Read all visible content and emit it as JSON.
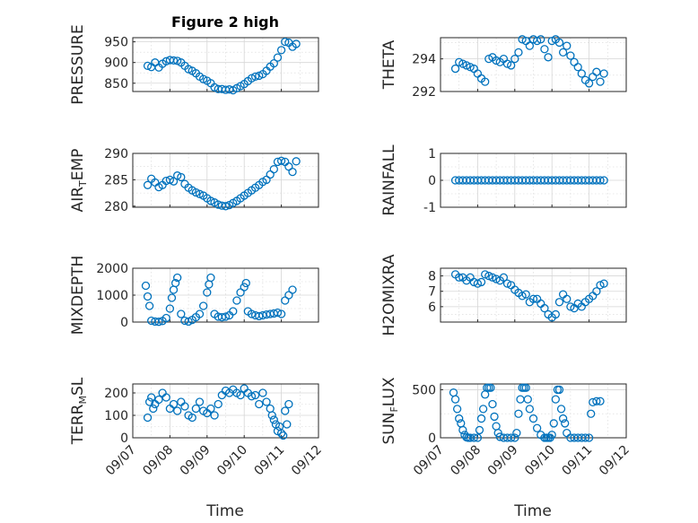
{
  "figure": {
    "title": "Figure 2 high",
    "xlabel": "Time"
  },
  "chart_data": [
    {
      "id": "pressure",
      "type": "scatter",
      "ylabel": "PRESSURE",
      "xlim": [
        0,
        5
      ],
      "ylim": [
        830,
        960
      ],
      "yticks": [
        850,
        900,
        950
      ],
      "ytick_labels": [
        "850",
        "900",
        "950"
      ],
      "x": [
        0.4,
        0.5,
        0.6,
        0.7,
        0.8,
        0.9,
        1.0,
        1.1,
        1.2,
        1.3,
        1.4,
        1.5,
        1.6,
        1.7,
        1.8,
        1.9,
        2.0,
        2.1,
        2.2,
        2.3,
        2.4,
        2.5,
        2.6,
        2.7,
        2.8,
        2.9,
        3.0,
        3.1,
        3.2,
        3.3,
        3.4,
        3.5,
        3.6,
        3.7,
        3.8,
        3.9,
        4.0,
        4.1,
        4.2,
        4.3,
        4.4
      ],
      "y": [
        892,
        889,
        900,
        888,
        897,
        903,
        906,
        905,
        904,
        900,
        892,
        884,
        880,
        874,
        866,
        860,
        856,
        850,
        840,
        836,
        836,
        834,
        835,
        833,
        838,
        843,
        848,
        855,
        862,
        866,
        868,
        872,
        880,
        890,
        898,
        912,
        930,
        950,
        948,
        938,
        945
      ]
    },
    {
      "id": "theta",
      "type": "scatter",
      "ylabel": "THETA",
      "xlim": [
        0,
        5
      ],
      "ylim": [
        292,
        295.3
      ],
      "yticks": [
        292,
        294
      ],
      "ytick_labels": [
        "292",
        "294"
      ],
      "x": [
        0.4,
        0.5,
        0.6,
        0.7,
        0.8,
        0.9,
        1.0,
        1.1,
        1.2,
        1.3,
        1.4,
        1.5,
        1.6,
        1.7,
        1.8,
        1.9,
        2.0,
        2.1,
        2.2,
        2.3,
        2.4,
        2.5,
        2.6,
        2.7,
        2.8,
        2.9,
        3.0,
        3.1,
        3.2,
        3.3,
        3.4,
        3.5,
        3.6,
        3.7,
        3.8,
        3.9,
        4.0,
        4.1,
        4.2,
        4.3,
        4.4
      ],
      "y": [
        293.4,
        293.8,
        293.7,
        293.6,
        293.5,
        293.4,
        293.1,
        292.8,
        292.6,
        294.0,
        294.1,
        293.9,
        293.8,
        294.0,
        293.7,
        293.6,
        294.0,
        294.4,
        295.2,
        295.1,
        294.8,
        295.2,
        295.1,
        295.2,
        294.6,
        294.1,
        295.1,
        295.2,
        295.0,
        294.4,
        294.8,
        294.2,
        293.8,
        293.5,
        293.1,
        292.7,
        292.5,
        292.9,
        293.2,
        292.6,
        293.1
      ]
    },
    {
      "id": "air_temp",
      "type": "scatter",
      "ylabel": "AIR",
      "ylabel_sub": "T",
      "ylabel_rest": "EMP",
      "xlim": [
        0,
        5
      ],
      "ylim": [
        279.8,
        290
      ],
      "yticks": [
        280,
        285,
        290
      ],
      "ytick_labels": [
        "280",
        "285",
        "290"
      ],
      "x": [
        0.4,
        0.5,
        0.6,
        0.7,
        0.8,
        0.9,
        1.0,
        1.1,
        1.2,
        1.3,
        1.4,
        1.5,
        1.6,
        1.7,
        1.8,
        1.9,
        2.0,
        2.1,
        2.2,
        2.3,
        2.4,
        2.5,
        2.6,
        2.7,
        2.8,
        2.9,
        3.0,
        3.1,
        3.2,
        3.3,
        3.4,
        3.5,
        3.6,
        3.7,
        3.8,
        3.9,
        4.0,
        4.1,
        4.2,
        4.3,
        4.4
      ],
      "y": [
        284.0,
        285.2,
        284.5,
        283.6,
        284.0,
        284.8,
        285.0,
        284.7,
        285.8,
        285.5,
        284.2,
        283.5,
        283.0,
        282.6,
        282.3,
        282.0,
        281.5,
        281.0,
        280.7,
        280.3,
        280.1,
        280.0,
        280.2,
        280.6,
        281.0,
        281.5,
        282.0,
        282.5,
        283.0,
        283.5,
        284.0,
        284.6,
        285.0,
        286.0,
        287.0,
        288.4,
        288.6,
        288.4,
        287.5,
        286.5,
        288.5
      ]
    },
    {
      "id": "rainfall",
      "type": "scatter",
      "ylabel": "RAINFALL",
      "xlim": [
        0,
        5
      ],
      "ylim": [
        -1,
        1
      ],
      "yticks": [
        -1,
        0,
        1
      ],
      "ytick_labels": [
        "-1",
        "0",
        "1"
      ],
      "x": [
        0.4,
        0.5,
        0.6,
        0.7,
        0.8,
        0.9,
        1.0,
        1.1,
        1.2,
        1.3,
        1.4,
        1.5,
        1.6,
        1.7,
        1.8,
        1.9,
        2.0,
        2.1,
        2.2,
        2.3,
        2.4,
        2.5,
        2.6,
        2.7,
        2.8,
        2.9,
        3.0,
        3.1,
        3.2,
        3.3,
        3.4,
        3.5,
        3.6,
        3.7,
        3.8,
        3.9,
        4.0,
        4.1,
        4.2,
        4.3,
        4.4
      ],
      "y": [
        0,
        0,
        0,
        0,
        0,
        0,
        0,
        0,
        0,
        0,
        0,
        0,
        0,
        0,
        0,
        0,
        0,
        0,
        0,
        0,
        0,
        0,
        0,
        0,
        0,
        0,
        0,
        0,
        0,
        0,
        0,
        0,
        0,
        0,
        0,
        0,
        0,
        0,
        0,
        0,
        0
      ]
    },
    {
      "id": "mixdepth",
      "type": "scatter",
      "ylabel": "MIXDEPTH",
      "xlim": [
        0,
        5
      ],
      "ylim": [
        0,
        2000
      ],
      "yticks": [
        0,
        1000,
        2000
      ],
      "ytick_labels": [
        "0",
        "1000",
        "2000"
      ],
      "x": [
        0.35,
        0.4,
        0.45,
        0.5,
        0.6,
        0.7,
        0.8,
        0.9,
        1.0,
        1.05,
        1.1,
        1.15,
        1.2,
        1.3,
        1.4,
        1.5,
        1.6,
        1.7,
        1.8,
        1.9,
        2.0,
        2.05,
        2.1,
        2.2,
        2.3,
        2.4,
        2.5,
        2.6,
        2.7,
        2.8,
        2.9,
        3.0,
        3.05,
        3.1,
        3.2,
        3.3,
        3.4,
        3.5,
        3.6,
        3.7,
        3.8,
        3.9,
        4.0,
        4.1,
        4.2,
        4.3
      ],
      "y": [
        1350,
        950,
        600,
        50,
        20,
        10,
        40,
        150,
        500,
        900,
        1200,
        1450,
        1650,
        300,
        50,
        20,
        80,
        180,
        300,
        600,
        1100,
        1400,
        1650,
        300,
        200,
        180,
        200,
        250,
        400,
        800,
        1100,
        1300,
        1450,
        400,
        300,
        250,
        220,
        250,
        280,
        300,
        320,
        350,
        300,
        800,
        1000,
        1200
      ]
    },
    {
      "id": "h2omixra",
      "type": "scatter",
      "ylabel": "H2OMIXRA",
      "xlim": [
        0,
        5
      ],
      "ylim": [
        5,
        8.5
      ],
      "yticks": [
        6,
        7,
        8
      ],
      "ytick_labels": [
        "6",
        "7",
        "8"
      ],
      "x": [
        0.4,
        0.5,
        0.6,
        0.7,
        0.8,
        0.9,
        1.0,
        1.1,
        1.2,
        1.3,
        1.4,
        1.5,
        1.6,
        1.7,
        1.8,
        1.9,
        2.0,
        2.1,
        2.2,
        2.3,
        2.4,
        2.5,
        2.6,
        2.7,
        2.8,
        2.9,
        3.0,
        3.1,
        3.2,
        3.3,
        3.4,
        3.5,
        3.6,
        3.7,
        3.8,
        3.9,
        4.0,
        4.1,
        4.2,
        4.3,
        4.4
      ],
      "y": [
        8.1,
        7.9,
        7.9,
        7.7,
        7.9,
        7.6,
        7.5,
        7.6,
        8.1,
        8.0,
        7.9,
        7.8,
        7.7,
        7.9,
        7.5,
        7.4,
        7.1,
        6.9,
        6.7,
        6.8,
        6.3,
        6.5,
        6.5,
        6.2,
        5.9,
        5.5,
        5.3,
        5.5,
        6.3,
        6.8,
        6.5,
        6.0,
        5.9,
        6.2,
        6.0,
        6.3,
        6.5,
        6.7,
        7.0,
        7.4,
        7.5
      ]
    },
    {
      "id": "terr_msl",
      "type": "scatter",
      "ylabel": "TERR",
      "ylabel_sub": "M",
      "ylabel_rest": "SL",
      "xlim": [
        0,
        5
      ],
      "ylim": [
        0,
        240
      ],
      "yticks": [
        0,
        100,
        200
      ],
      "ytick_labels": [
        "0",
        "100",
        "200"
      ],
      "x": [
        0.4,
        0.45,
        0.5,
        0.55,
        0.6,
        0.7,
        0.8,
        0.9,
        1.0,
        1.1,
        1.2,
        1.3,
        1.4,
        1.5,
        1.6,
        1.7,
        1.8,
        1.9,
        2.0,
        2.1,
        2.2,
        2.3,
        2.4,
        2.5,
        2.6,
        2.7,
        2.8,
        2.9,
        3.0,
        3.1,
        3.2,
        3.3,
        3.4,
        3.5,
        3.6,
        3.7,
        3.75,
        3.8,
        3.85,
        3.9,
        3.95,
        4.0,
        4.05,
        4.1,
        4.15,
        4.2
      ],
      "y": [
        90,
        160,
        180,
        130,
        150,
        170,
        200,
        180,
        130,
        150,
        120,
        160,
        140,
        100,
        90,
        130,
        160,
        120,
        110,
        130,
        100,
        150,
        190,
        210,
        200,
        215,
        200,
        190,
        220,
        200,
        185,
        190,
        150,
        200,
        160,
        130,
        100,
        80,
        60,
        30,
        50,
        20,
        10,
        120,
        60,
        150
      ]
    },
    {
      "id": "sun_flux",
      "type": "scatter",
      "ylabel": "SUN",
      "ylabel_sub": "F",
      "ylabel_rest": "LUX",
      "xlim": [
        0,
        5
      ],
      "ylim": [
        0,
        560
      ],
      "yticks": [
        0,
        500
      ],
      "ytick_labels": [
        "0",
        "500"
      ],
      "x": [
        0.35,
        0.4,
        0.45,
        0.5,
        0.55,
        0.6,
        0.65,
        0.7,
        0.75,
        0.8,
        0.9,
        1.0,
        1.05,
        1.1,
        1.15,
        1.2,
        1.25,
        1.3,
        1.35,
        1.4,
        1.45,
        1.5,
        1.55,
        1.6,
        1.7,
        1.8,
        1.9,
        2.0,
        2.05,
        2.1,
        2.15,
        2.2,
        2.25,
        2.3,
        2.35,
        2.4,
        2.5,
        2.6,
        2.7,
        2.8,
        2.85,
        2.9,
        2.95,
        3.0,
        3.05,
        3.1,
        3.15,
        3.2,
        3.25,
        3.3,
        3.35,
        3.4,
        3.5,
        3.6,
        3.7,
        3.8,
        3.9,
        4.0,
        4.05,
        4.1,
        4.2,
        4.3
      ],
      "y": [
        470,
        400,
        300,
        200,
        150,
        80,
        30,
        5,
        0,
        0,
        0,
        0,
        80,
        200,
        300,
        450,
        520,
        520,
        520,
        350,
        220,
        120,
        50,
        10,
        0,
        0,
        0,
        0,
        50,
        250,
        400,
        520,
        520,
        520,
        400,
        300,
        200,
        100,
        30,
        0,
        0,
        0,
        0,
        30,
        150,
        400,
        500,
        500,
        300,
        200,
        150,
        50,
        0,
        0,
        0,
        0,
        0,
        0,
        250,
        370,
        380,
        380
      ]
    }
  ],
  "x_axis": {
    "tick_labels": [
      "09/07",
      "09/08",
      "09/09",
      "09/10",
      "09/11",
      "09/12"
    ],
    "minor_ticks": [
      0.5,
      1.5,
      2.5,
      3.5,
      4.5
    ]
  },
  "colors": {
    "marker": "#0072bd",
    "axes": "#262626",
    "grid": "#d6d6d6"
  }
}
